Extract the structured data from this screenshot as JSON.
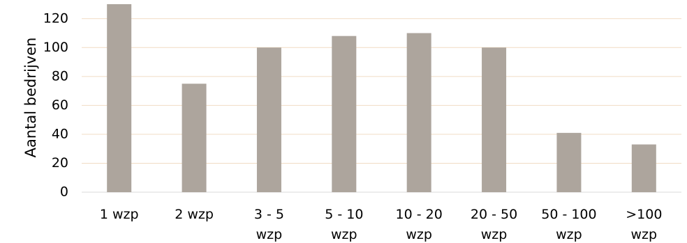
{
  "chart_data": {
    "type": "bar",
    "title": "",
    "xlabel": "",
    "ylabel": "Aantal bedrijven",
    "ylim": [
      0,
      130
    ],
    "yticks": [
      0,
      20,
      40,
      60,
      80,
      100,
      120
    ],
    "grid": true,
    "legend": "none",
    "categories": [
      [
        "1 wzp"
      ],
      [
        "2 wzp"
      ],
      [
        "3 - 5",
        "wzp"
      ],
      [
        "5 - 10",
        "wzp"
      ],
      [
        "10 - 20",
        "wzp"
      ],
      [
        "20 - 50",
        "wzp"
      ],
      [
        "50 - 100",
        "wzp"
      ],
      [
        ">100",
        "wzp"
      ]
    ],
    "values": [
      130,
      75,
      100,
      108,
      110,
      100,
      41,
      33
    ],
    "colors": {
      "bar": "#ada59d",
      "grid": "#f1dcc4",
      "axis": "#d9d9d9",
      "text": "#000000"
    }
  }
}
